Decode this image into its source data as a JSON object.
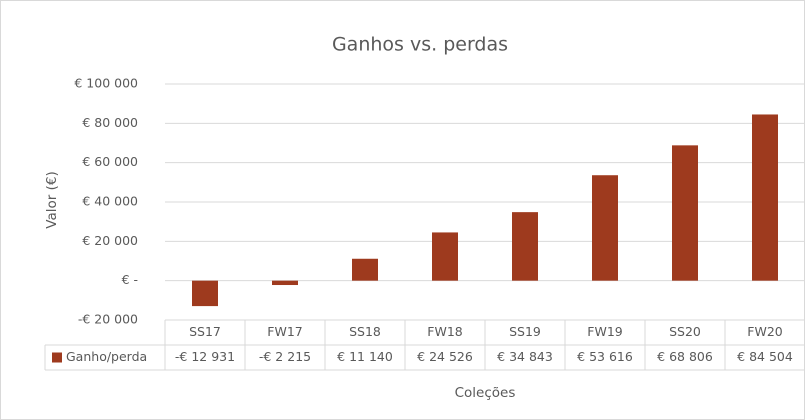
{
  "chart_data": {
    "type": "bar",
    "title": "Ganhos vs. perdas",
    "y_label": "Valor (€)",
    "x_label": "Coleções",
    "categories": [
      "SS17",
      "FW17",
      "SS18",
      "FW18",
      "SS19",
      "FW19",
      "SS20",
      "FW20"
    ],
    "series": [
      {
        "name": "Ganho/perda",
        "color": "#9e3a1e",
        "values": [
          -12931,
          -2215,
          11140,
          24526,
          34843,
          53616,
          68806,
          84504
        ],
        "value_labels": [
          "-€ 12 931",
          "-€ 2 215",
          "€ 11 140",
          "€ 24 526",
          "€ 34 843",
          "€ 53 616",
          "€ 68 806",
          "€ 84 504"
        ]
      }
    ],
    "ylim": [
      -20000,
      100000
    ],
    "yticks": [
      {
        "value": -20000,
        "label": "-€ 20 000"
      },
      {
        "value": 0,
        "label": "€ -"
      },
      {
        "value": 20000,
        "label": "€ 20 000"
      },
      {
        "value": 40000,
        "label": "€ 40 000"
      },
      {
        "value": 60000,
        "label": "€ 60 000"
      },
      {
        "value": 80000,
        "label": "€ 80 000"
      },
      {
        "value": 100000,
        "label": "€ 100 000"
      }
    ],
    "grid": true
  }
}
